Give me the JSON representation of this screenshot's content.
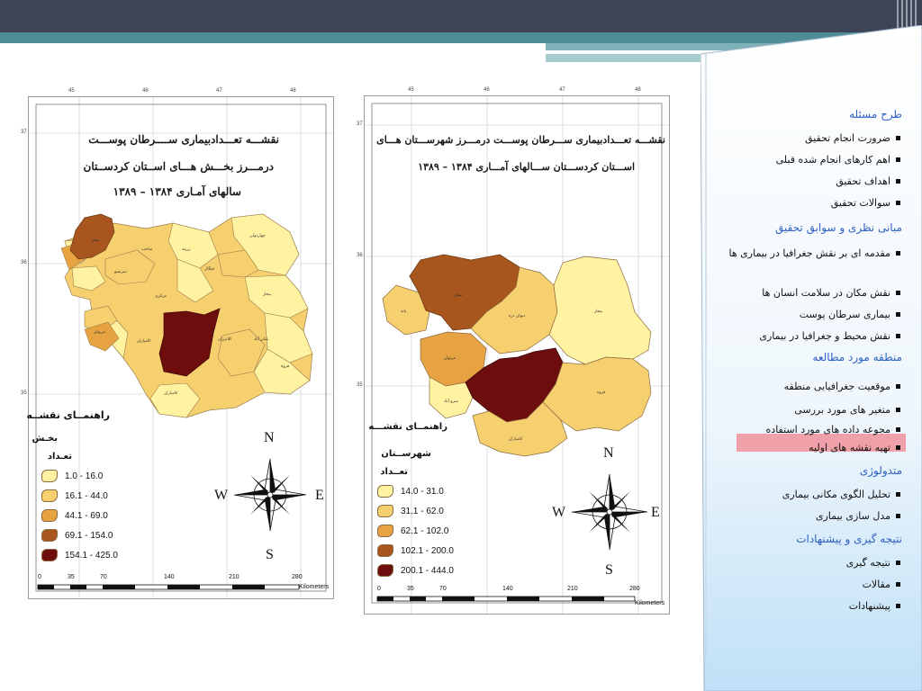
{
  "colors": {
    "class1": "#fff2a0",
    "class2": "#f6cf6e",
    "class3": "#e7a342",
    "class4": "#a8561e",
    "class5": "#6e0d0d",
    "topbar": "#3d4456",
    "teal": "#4e8c96",
    "section": "#2d5fc4",
    "highlight": "#f0a0a8"
  },
  "left_map": {
    "title_lines": [
      "نقشـــه تعـــدادبیماری ســــرطان پوســـت",
      "درمـــرز بخـــش هـــای اســتان کردســتان",
      "سالهای آمـاری ۱۳۸۴ – ۱۳۸۹"
    ],
    "legend_title": "راهنمــای نقشــه",
    "legend_sub": "بخـش",
    "legend_unit": "تعـداد",
    "legend": [
      "1.0 - 16.0",
      "16.1 - 44.0",
      "44.1 - 69.0",
      "69.1 - 154.0",
      "154.1 - 425.0"
    ],
    "scale": [
      "0",
      "35",
      "70",
      "140",
      "210",
      "280"
    ],
    "scale_unit": "Kilometers",
    "lon_ticks": [
      "45",
      "46",
      "47",
      "48"
    ],
    "lat_ticks": [
      "37",
      "36",
      "35"
    ]
  },
  "right_map": {
    "title_lines": [
      "نقشـــه تعـــدادبیماری ســـرطان پوســـت درمـــرز شهرســـتان هـــای",
      "اســـتان کردســـتان ســـالهای آمـــاری ۱۳۸۴ – ۱۳۸۹"
    ],
    "legend_title": "راهنمــای نقشـــه",
    "legend_sub": "شهرســتان",
    "legend_unit": "تعــداد",
    "legend": [
      "14.0 - 31.0",
      "31.1 - 62.0",
      "62.1 - 102.0",
      "102.1 - 200.0",
      "200.1 - 444.0"
    ],
    "scale": [
      "0",
      "35",
      "70",
      "140",
      "210",
      "280"
    ],
    "scale_unit": "Kilometers",
    "lon_ticks": [
      "45",
      "46",
      "47",
      "48"
    ],
    "lat_ticks": [
      "37",
      "36",
      "35"
    ]
  },
  "compass": {
    "n": "N",
    "s": "S",
    "e": "E",
    "w": "W"
  },
  "toc": [
    {
      "type": "section",
      "label": "طرح مسئله"
    },
    {
      "type": "item",
      "label": "ضرورت انجام تحقیق"
    },
    {
      "type": "item",
      "label": "اهم کارهای انجام شده قبلی"
    },
    {
      "type": "item",
      "label": "اهداف تحقیق"
    },
    {
      "type": "item",
      "label": "سوالات تحقیق"
    },
    {
      "type": "section",
      "label": "مبانی نظری و سوابق تحقیق"
    },
    {
      "type": "item",
      "label": "مقدمه ای بر نقش جغرافیا در بیماری ها"
    },
    {
      "type": "item",
      "label": "نقش مکان در سلامت انسان ها"
    },
    {
      "type": "item",
      "label": "بیماری سرطان پوست"
    },
    {
      "type": "item",
      "label": "نقش محیط و جغرافیا در بیماری"
    },
    {
      "type": "section",
      "label": "منطقه مورد مطالعه"
    },
    {
      "type": "item",
      "label": "موقعیت جغرافیایی منطقه"
    },
    {
      "type": "item",
      "label": "متغیر های مورد بررسی"
    },
    {
      "type": "item",
      "label": "مجوعه داده های مورد استفاده"
    },
    {
      "type": "item",
      "label": "تهیه نقشه های اولیه",
      "active": true
    },
    {
      "type": "section",
      "label": "متدولوژی"
    },
    {
      "type": "item",
      "label": "تحلیل الگوی مکانی بیماری"
    },
    {
      "type": "item",
      "label": "مدل سازی بیماری"
    },
    {
      "type": "section",
      "label": "نتیجه گیری و پیشنهادات"
    },
    {
      "type": "item",
      "label": "نتیجه گیری"
    },
    {
      "type": "item",
      "label": "مقالات"
    },
    {
      "type": "item",
      "label": "پیشنهادات"
    }
  ]
}
